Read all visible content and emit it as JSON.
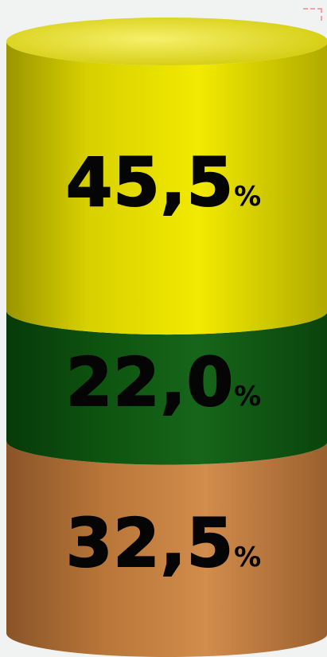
{
  "chart_data": {
    "type": "bar",
    "orientation": "stacked-cylinder",
    "series": [
      {
        "value": 45.5,
        "label": "45,5",
        "unit": "%",
        "color": "#e9e100"
      },
      {
        "value": 22.0,
        "label": "22,0",
        "unit": "%",
        "color": "#0f5a12"
      },
      {
        "value": 32.5,
        "label": "32,5",
        "unit": "%",
        "color": "#c98545"
      }
    ],
    "title": "",
    "legend": "none",
    "grid": false
  }
}
